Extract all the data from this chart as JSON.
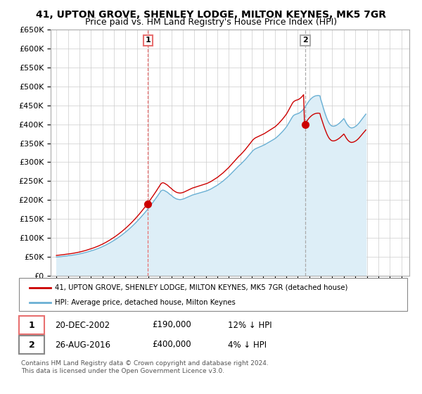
{
  "title": "41, UPTON GROVE, SHENLEY LODGE, MILTON KEYNES, MK5 7GR",
  "subtitle": "Price paid vs. HM Land Registry's House Price Index (HPI)",
  "sale1_date_label": "20-DEC-2002",
  "sale1_price": 190000,
  "sale1_hpi_diff": "12% ↓ HPI",
  "sale1_year": 2002.97,
  "sale2_date_label": "26-AUG-2016",
  "sale2_price": 400000,
  "sale2_hpi_diff": "4% ↓ HPI",
  "sale2_year": 2016.65,
  "legend_line1": "41, UPTON GROVE, SHENLEY LODGE, MILTON KEYNES, MK5 7GR (detached house)",
  "legend_line2": "HPI: Average price, detached house, Milton Keynes",
  "footnote": "Contains HM Land Registry data © Crown copyright and database right 2024.\nThis data is licensed under the Open Government Licence v3.0.",
  "hpi_color": "#6ab0d4",
  "price_color": "#cc0000",
  "fill_color": "#ddeef7",
  "dashed1_color": "#e87070",
  "dashed2_color": "#aaaaaa",
  "ylim": [
    0,
    650000
  ],
  "yticks": [
    0,
    50000,
    100000,
    150000,
    200000,
    250000,
    300000,
    350000,
    400000,
    450000,
    500000,
    550000,
    600000,
    650000
  ],
  "background_color": "#ffffff",
  "grid_color": "#cccccc",
  "hpi_monthly_index": [
    67.0,
    67.3,
    67.7,
    68.0,
    68.4,
    68.7,
    69.1,
    69.4,
    69.8,
    70.1,
    70.5,
    70.9,
    71.3,
    71.8,
    72.3,
    72.8,
    73.3,
    73.8,
    74.4,
    74.9,
    75.5,
    76.1,
    76.7,
    77.4,
    78.1,
    78.8,
    79.6,
    80.4,
    81.2,
    82.1,
    82.9,
    83.8,
    84.8,
    85.7,
    86.7,
    87.7,
    88.7,
    89.8,
    90.9,
    92.0,
    93.2,
    94.4,
    95.6,
    96.9,
    98.2,
    99.6,
    101.0,
    102.5,
    104.0,
    105.6,
    107.2,
    108.9,
    110.6,
    112.4,
    114.2,
    116.1,
    118.0,
    120.0,
    122.0,
    124.1,
    126.2,
    128.3,
    130.5,
    132.8,
    135.1,
    137.5,
    139.9,
    142.4,
    144.9,
    147.5,
    150.1,
    152.8,
    155.6,
    158.4,
    161.3,
    164.3,
    167.3,
    170.4,
    173.5,
    176.7,
    180.0,
    183.3,
    186.7,
    190.2,
    193.7,
    197.3,
    201.0,
    204.7,
    208.5,
    212.3,
    216.2,
    220.2,
    224.2,
    228.3,
    232.5,
    236.7,
    241.0,
    245.4,
    249.8,
    254.3,
    258.8,
    263.4,
    268.0,
    272.7,
    277.5,
    282.3,
    287.2,
    292.1,
    297.1,
    302.1,
    305.0,
    306.0,
    305.5,
    304.0,
    302.0,
    300.0,
    298.0,
    295.0,
    292.0,
    289.5,
    287.0,
    284.0,
    281.0,
    279.0,
    277.0,
    275.0,
    274.0,
    273.0,
    272.5,
    272.0,
    272.5,
    273.0,
    274.0,
    275.0,
    276.5,
    278.0,
    279.5,
    281.0,
    282.5,
    284.0,
    285.5,
    287.0,
    288.5,
    289.5,
    290.5,
    291.5,
    292.5,
    293.5,
    294.5,
    295.5,
    296.5,
    297.5,
    298.5,
    299.5,
    300.5,
    301.5,
    302.5,
    303.5,
    305.0,
    306.5,
    308.0,
    309.5,
    311.5,
    313.5,
    315.5,
    317.5,
    319.5,
    321.5,
    323.5,
    326.0,
    328.5,
    331.0,
    333.5,
    336.0,
    338.5,
    341.5,
    344.5,
    347.5,
    350.5,
    353.5,
    356.5,
    360.0,
    363.5,
    367.0,
    370.5,
    374.0,
    377.5,
    381.0,
    384.5,
    388.0,
    391.5,
    394.5,
    397.5,
    400.5,
    404.0,
    407.5,
    411.0,
    414.5,
    418.5,
    422.5,
    426.5,
    430.5,
    434.5,
    438.5,
    442.5,
    446.5,
    449.5,
    452.0,
    454.0,
    455.5,
    457.0,
    458.5,
    460.0,
    461.5,
    463.0,
    464.5,
    466.0,
    467.5,
    469.5,
    471.5,
    473.5,
    475.5,
    477.5,
    479.5,
    481.5,
    483.5,
    485.5,
    487.5,
    489.5,
    492.0,
    495.0,
    498.0,
    501.0,
    504.5,
    508.0,
    511.5,
    515.0,
    519.0,
    523.0,
    527.0,
    531.5,
    536.5,
    542.0,
    548.0,
    554.0,
    560.0,
    565.5,
    570.5,
    573.5,
    575.5,
    577.0,
    578.0,
    579.0,
    580.5,
    582.5,
    585.0,
    588.0,
    591.5,
    595.5,
    600.0,
    605.0,
    610.5,
    616.0,
    621.0,
    625.5,
    629.5,
    633.0,
    636.0,
    638.5,
    640.5,
    642.0,
    643.0,
    643.5,
    644.0,
    643.5,
    643.0,
    629.0,
    618.0,
    606.0,
    595.0,
    584.0,
    574.0,
    564.5,
    556.0,
    549.0,
    543.0,
    539.0,
    536.0,
    534.5,
    534.0,
    534.5,
    535.5,
    537.0,
    539.0,
    541.5,
    544.0,
    547.0,
    550.5,
    554.0,
    557.5,
    561.5,
    556.0,
    549.0,
    543.0,
    538.0,
    534.0,
    531.0,
    529.0,
    528.0,
    528.5,
    529.5,
    531.0,
    533.0,
    535.5,
    538.5,
    542.0,
    546.0,
    550.5,
    555.0,
    559.5,
    564.0,
    568.5,
    573.0,
    577.5
  ]
}
